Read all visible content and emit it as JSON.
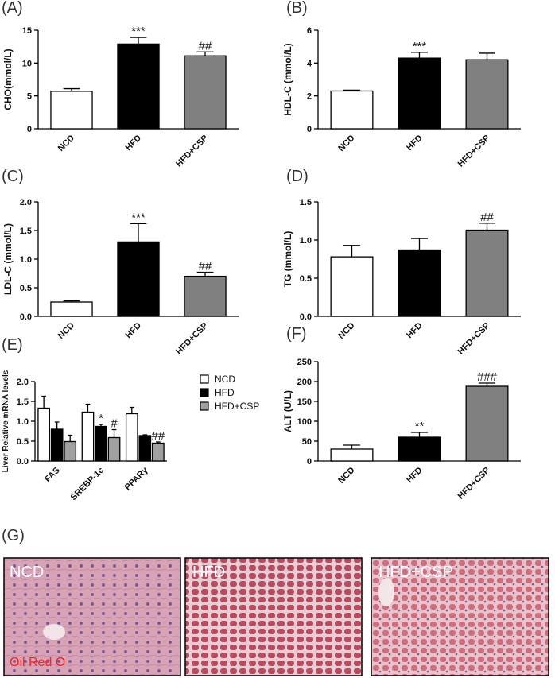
{
  "chart_data": [
    {
      "type": "bar",
      "title": "(A)",
      "ylabel": "CHO(mmol/L)",
      "categories": [
        "NCD",
        "HFD",
        "HFD+CSP"
      ],
      "values": [
        5.7,
        12.9,
        11.1
      ],
      "errors": [
        0.4,
        1.0,
        0.6
      ],
      "colors": [
        "#ffffff",
        "#000000",
        "#808080"
      ],
      "ylim": [
        0,
        15
      ],
      "yticks": [
        0,
        5,
        10,
        15
      ],
      "annotations": [
        {
          "index": 1,
          "text": "***"
        },
        {
          "index": 2,
          "text": "##"
        }
      ]
    },
    {
      "type": "bar",
      "title": "(B)",
      "ylabel": "HDL-C (mmol/L)",
      "categories": [
        "NCD",
        "HFD",
        "HFD+CSP"
      ],
      "values": [
        2.3,
        4.3,
        4.2
      ],
      "errors": [
        0.05,
        0.35,
        0.4
      ],
      "colors": [
        "#ffffff",
        "#000000",
        "#808080"
      ],
      "ylim": [
        0,
        6
      ],
      "yticks": [
        0,
        2,
        4,
        6
      ],
      "annotations": [
        {
          "index": 1,
          "text": "***"
        }
      ]
    },
    {
      "type": "bar",
      "title": "(C)",
      "ylabel": "LDL-C (mmol/L)",
      "categories": [
        "NCD",
        "HFD",
        "HFD+CSP"
      ],
      "values": [
        0.25,
        1.3,
        0.7
      ],
      "errors": [
        0.02,
        0.32,
        0.07
      ],
      "colors": [
        "#ffffff",
        "#000000",
        "#808080"
      ],
      "ylim": [
        0,
        2
      ],
      "yticks": [
        {
          "value": 0,
          "label": "0.0"
        },
        0.5,
        {
          "value": 1,
          "label": "1.0"
        },
        1.5,
        {
          "value": 2,
          "label": "2.0"
        }
      ],
      "annotations": [
        {
          "index": 1,
          "text": "***"
        },
        {
          "index": 2,
          "text": "##"
        }
      ]
    },
    {
      "type": "bar",
      "title": "(D)",
      "ylabel": "TG (mmol/L)",
      "categories": [
        "NCD",
        "HFD",
        "HFD+CSP"
      ],
      "values": [
        0.78,
        0.87,
        1.13
      ],
      "errors": [
        0.15,
        0.15,
        0.09
      ],
      "colors": [
        "#ffffff",
        "#000000",
        "#808080"
      ],
      "ylim": [
        0,
        1.5
      ],
      "yticks": [
        {
          "value": 0,
          "label": "0.0"
        },
        0.5,
        {
          "value": 1,
          "label": "1.0"
        },
        1.5
      ],
      "annotations": [
        {
          "index": 2,
          "text": "##"
        }
      ]
    },
    {
      "type": "grouped_bar",
      "title": "(E)",
      "ylabel": "Liver Relative mRNA levels",
      "categories": [
        "FAS",
        "SREBP-1c",
        "PPARγ"
      ],
      "series": [
        {
          "name": "NCD",
          "color": "#ffffff",
          "values": [
            1.33,
            1.23,
            1.19
          ],
          "errors": [
            0.3,
            0.2,
            0.16
          ]
        },
        {
          "name": "HFD",
          "color": "#000000",
          "values": [
            0.8,
            0.87,
            0.64
          ],
          "errors": [
            0.18,
            0.05,
            0.02
          ]
        },
        {
          "name": "HFD+CSP",
          "color": "#a0a0a0",
          "values": [
            0.49,
            0.59,
            0.45
          ],
          "errors": [
            0.16,
            0.2,
            0.03
          ]
        }
      ],
      "ylim": [
        0,
        2
      ],
      "yticks": [
        {
          "value": 0,
          "label": "0.0"
        },
        0.5,
        {
          "value": 1,
          "label": "1.0"
        },
        1.5,
        {
          "value": 2,
          "label": "2.0"
        }
      ],
      "legend": "upper right",
      "annotations": [
        {
          "series": 1,
          "index": 1,
          "text": "*"
        },
        {
          "series": 2,
          "index": 1,
          "text": "#"
        },
        {
          "series": 2,
          "index": 2,
          "text": "##"
        }
      ]
    },
    {
      "type": "bar",
      "title": "(F)",
      "ylabel": "ALT (U/L)",
      "categories": [
        "NCD",
        "HFD",
        "HFD+CSP"
      ],
      "values": [
        30,
        60,
        188
      ],
      "errors": [
        10,
        12,
        8
      ],
      "colors": [
        "#ffffff",
        "#000000",
        "#808080"
      ],
      "ylim": [
        0,
        250
      ],
      "yticks": [
        0,
        50,
        100,
        150,
        200,
        250
      ],
      "annotations": [
        {
          "index": 1,
          "text": "**"
        },
        {
          "index": 2,
          "text": "###"
        }
      ]
    }
  ],
  "image_panel": {
    "title": "(G)",
    "panels": [
      {
        "label": "NCD"
      },
      {
        "label": "HFD"
      },
      {
        "label": "HFD+CSP"
      }
    ],
    "stain": "Oil Red O"
  }
}
